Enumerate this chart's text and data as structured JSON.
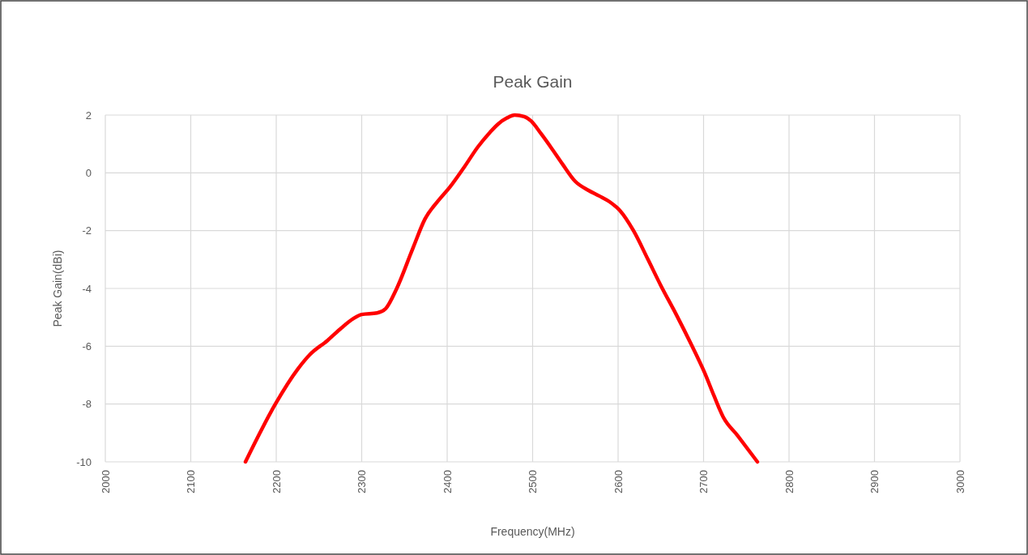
{
  "chart_data": {
    "type": "line",
    "title": "Peak Gain",
    "xlabel": "Frequency(MHz)",
    "ylabel": "Peak Gain(dBi)",
    "xlim": [
      2000,
      3000
    ],
    "xticks": [
      2000,
      2100,
      2200,
      2300,
      2400,
      2500,
      2600,
      2700,
      2800,
      2900,
      3000
    ],
    "ylim": [
      -10,
      2
    ],
    "yticks": [
      -10,
      -8,
      -6,
      -4,
      -2,
      0,
      2
    ],
    "grid": true,
    "line_style": "solid",
    "series": [
      {
        "color": "#ff0000",
        "x": [
          2164,
          2199,
          2225,
          2239,
          2260,
          2275,
          2290,
          2300,
          2318,
          2328,
          2341,
          2360,
          2374,
          2390,
          2403,
          2420,
          2436,
          2450,
          2460,
          2470,
          2479,
          2490,
          2498,
          2510,
          2521,
          2535,
          2550,
          2565,
          2578,
          2590,
          2602,
          2618,
          2635,
          2650,
          2668,
          2685,
          2701,
          2712,
          2723,
          2740,
          2763
        ],
        "values": [
          -10,
          -8.0,
          -6.8,
          -6.3,
          -5.8,
          -5.4,
          -5.05,
          -4.9,
          -4.85,
          -4.7,
          -4.0,
          -2.6,
          -1.6,
          -0.95,
          -0.5,
          0.2,
          0.9,
          1.4,
          1.7,
          1.9,
          2.0,
          1.95,
          1.8,
          1.35,
          0.9,
          0.3,
          -0.3,
          -0.6,
          -0.8,
          -1.0,
          -1.3,
          -2.0,
          -3.0,
          -3.9,
          -4.9,
          -5.9,
          -6.9,
          -7.7,
          -8.45,
          -9.1,
          -10
        ]
      }
    ]
  }
}
